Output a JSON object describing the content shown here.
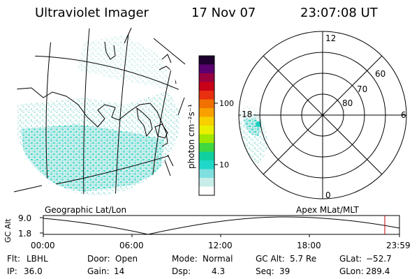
{
  "header": {
    "instrument": "Ultraviolet Imager",
    "date": "17 Nov 07",
    "time": "23:07:08 UT"
  },
  "geographic_panel": {
    "label": "Geographic Lat/Lon"
  },
  "colorbar": {
    "unit_label": "photon cm⁻²s⁻¹",
    "tick_labels": [
      "100",
      "10"
    ],
    "colors": [
      "#200030",
      "#5a0070",
      "#9a0040",
      "#c80018",
      "#e83010",
      "#f07000",
      "#f8a000",
      "#f8d000",
      "#e8f000",
      "#a0e800",
      "#40d840",
      "#10d0a0",
      "#20d8c8",
      "#80e0e0",
      "#c8ece8",
      "#ffffff"
    ]
  },
  "polar_panel": {
    "label": "Apex MLat/MLT",
    "mlt_labels": {
      "top": "12",
      "left": "18",
      "right": "6",
      "bottom": "0"
    },
    "mlat_labels": [
      "60",
      "70",
      "80"
    ]
  },
  "altitude_strip": {
    "ylabel": "GC Alt",
    "y_ticks": [
      "9.0",
      "1.8"
    ],
    "x_ticks": [
      "00:00",
      "06:00",
      "12:00",
      "18:00",
      "23:59"
    ]
  },
  "status": {
    "filter": {
      "label": "Flt:",
      "value": "LBHL"
    },
    "door": {
      "label": "Door:",
      "value": "Open"
    },
    "mode": {
      "label": "Mode:",
      "value": "Normal"
    },
    "gc_alt": {
      "label": "GC Alt:",
      "value": "5.7 Re"
    },
    "glat": {
      "label": "GLat:",
      "value": "−52.7"
    },
    "ip": {
      "label": "IP:",
      "value": "36.0"
    },
    "gain": {
      "label": "Gain:",
      "value": "14"
    },
    "dsp": {
      "label": "Dsp:",
      "value": "4.3"
    },
    "seq": {
      "label": "Seq:",
      "value": "39"
    },
    "glon": {
      "label": "GLon:",
      "value": "289.4"
    }
  },
  "colors": {
    "emission_light": "#c8ece8",
    "emission_mid": "#80e0e0",
    "emission_strong": "#20d8c8",
    "marker": "#c00000"
  }
}
